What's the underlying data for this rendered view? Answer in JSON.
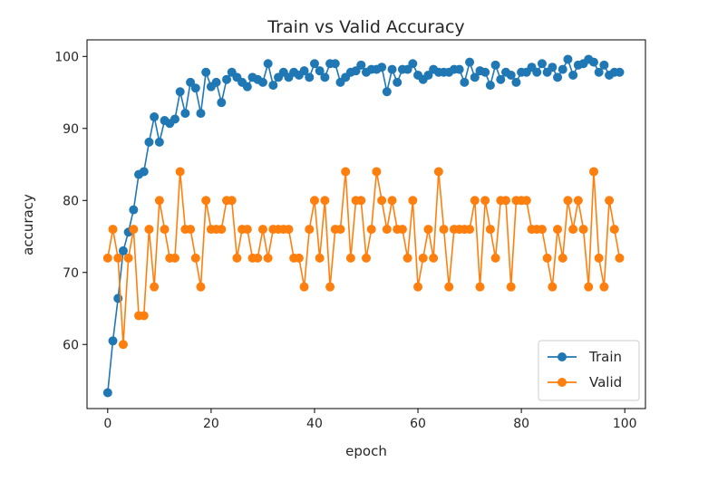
{
  "chart_data": {
    "type": "line",
    "title": "Train vs Valid Accuracy",
    "xlabel": "epoch",
    "ylabel": "accuracy",
    "xlim": [
      -4,
      104
    ],
    "ylim": [
      51.1,
      102.3
    ],
    "xticks": [
      0,
      20,
      40,
      60,
      80,
      100
    ],
    "yticks": [
      60,
      70,
      80,
      90,
      100
    ],
    "grid": false,
    "legend_position": "lower-right",
    "series": [
      {
        "name": "Train",
        "color": "#1f77b4",
        "marker": "circle",
        "x": [
          0,
          1,
          2,
          3,
          4,
          5,
          6,
          7,
          8,
          9,
          10,
          11,
          12,
          13,
          14,
          15,
          16,
          17,
          18,
          19,
          20,
          21,
          22,
          23,
          24,
          25,
          26,
          27,
          28,
          29,
          30,
          31,
          32,
          33,
          34,
          35,
          36,
          37,
          38,
          39,
          40,
          41,
          42,
          43,
          44,
          45,
          46,
          47,
          48,
          49,
          50,
          51,
          52,
          53,
          54,
          55,
          56,
          57,
          58,
          59,
          60,
          61,
          62,
          63,
          64,
          65,
          66,
          67,
          68,
          69,
          70,
          71,
          72,
          73,
          74,
          75,
          76,
          77,
          78,
          79,
          80,
          81,
          82,
          83,
          84,
          85,
          86,
          87,
          88,
          89,
          90,
          91,
          92,
          93,
          94,
          95,
          96,
          97,
          98,
          99
        ],
        "values": [
          53.3,
          60.5,
          66.4,
          73.0,
          75.6,
          78.7,
          83.6,
          84.0,
          88.1,
          91.6,
          88.1,
          91.1,
          90.7,
          91.3,
          95.1,
          92.1,
          96.4,
          95.6,
          92.1,
          97.8,
          95.8,
          96.4,
          93.6,
          96.8,
          97.8,
          97.1,
          96.4,
          95.8,
          97.1,
          96.8,
          96.4,
          99.0,
          96.0,
          97.1,
          97.8,
          97.1,
          97.8,
          97.4,
          98.0,
          97.1,
          99.0,
          98.0,
          97.1,
          99.0,
          99.0,
          96.4,
          97.1,
          97.8,
          98.0,
          98.8,
          97.8,
          98.2,
          98.2,
          98.5,
          95.1,
          98.2,
          96.4,
          98.2,
          98.2,
          99.0,
          97.4,
          96.8,
          97.4,
          98.2,
          97.8,
          97.8,
          97.8,
          98.2,
          98.2,
          96.4,
          99.2,
          97.1,
          98.0,
          97.8,
          96.0,
          98.8,
          96.8,
          97.8,
          97.4,
          96.4,
          97.8,
          97.8,
          98.5,
          97.8,
          99.0,
          97.8,
          98.5,
          97.1,
          98.2,
          99.6,
          97.4,
          98.8,
          99.0,
          99.6,
          99.2,
          97.8,
          98.8,
          97.4,
          97.8,
          97.8
        ]
      },
      {
        "name": "Valid",
        "color": "#ff7f0e",
        "marker": "circle",
        "x": [
          0,
          1,
          2,
          3,
          4,
          5,
          6,
          7,
          8,
          9,
          10,
          11,
          12,
          13,
          14,
          15,
          16,
          17,
          18,
          19,
          20,
          21,
          22,
          23,
          24,
          25,
          26,
          27,
          28,
          29,
          30,
          31,
          32,
          33,
          34,
          35,
          36,
          37,
          38,
          39,
          40,
          41,
          42,
          43,
          44,
          45,
          46,
          47,
          48,
          49,
          50,
          51,
          52,
          53,
          54,
          55,
          56,
          57,
          58,
          59,
          60,
          61,
          62,
          63,
          64,
          65,
          66,
          67,
          68,
          69,
          70,
          71,
          72,
          73,
          74,
          75,
          76,
          77,
          78,
          79,
          80,
          81,
          82,
          83,
          84,
          85,
          86,
          87,
          88,
          89,
          90,
          91,
          92,
          93,
          94,
          95,
          96,
          97,
          98,
          99
        ],
        "values": [
          72,
          76,
          72,
          60,
          72,
          76,
          64,
          64,
          76,
          68,
          80,
          76,
          72,
          72,
          84,
          76,
          76,
          72,
          68,
          80,
          76,
          76,
          76,
          80,
          80,
          72,
          76,
          76,
          72,
          72,
          76,
          72,
          76,
          76,
          76,
          76,
          72,
          72,
          68,
          76,
          80,
          72,
          80,
          68,
          76,
          76,
          84,
          72,
          80,
          80,
          72,
          76,
          84,
          80,
          76,
          80,
          76,
          76,
          72,
          80,
          68,
          72,
          76,
          72,
          84,
          76,
          68,
          76,
          76,
          76,
          76,
          80,
          68,
          80,
          76,
          72,
          80,
          80,
          68,
          80,
          80,
          80,
          76,
          76,
          76,
          72,
          68,
          76,
          72,
          80,
          76,
          80,
          76,
          68,
          84,
          72,
          68,
          80,
          76,
          72
        ]
      }
    ]
  }
}
